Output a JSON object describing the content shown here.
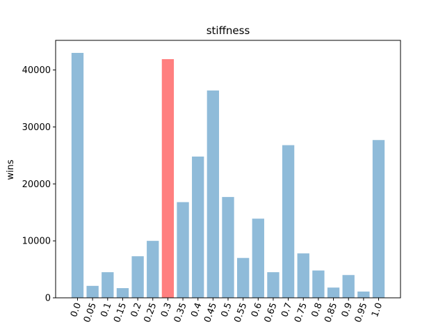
{
  "chart_data": {
    "type": "bar",
    "title": "stiffness",
    "xlabel": "",
    "ylabel": "wins",
    "categories": [
      "0.0",
      "0.05",
      "0.1",
      "0.15",
      "0.2",
      "0.25",
      "0.3",
      "0.35",
      "0.4",
      "0.45",
      "0.5",
      "0.55",
      "0.6",
      "0.65",
      "0.7",
      "0.75",
      "0.8",
      "0.85",
      "0.9",
      "0.95",
      "1.0"
    ],
    "values": [
      43000,
      2100,
      4500,
      1700,
      7300,
      10000,
      41900,
      16800,
      24800,
      36400,
      17700,
      7000,
      13900,
      4500,
      26800,
      7800,
      4800,
      1800,
      4000,
      1100,
      27700
    ],
    "highlight_index": 6,
    "colors": {
      "default": "#8fbbd9",
      "highlight": "#ff7f7f"
    },
    "ylim": [
      0,
      45200
    ],
    "yticks": [
      0,
      10000,
      20000,
      30000,
      40000
    ],
    "ytick_labels": [
      "0",
      "10000",
      "20000",
      "30000",
      "40000"
    ],
    "grid": false,
    "legend": "none"
  }
}
